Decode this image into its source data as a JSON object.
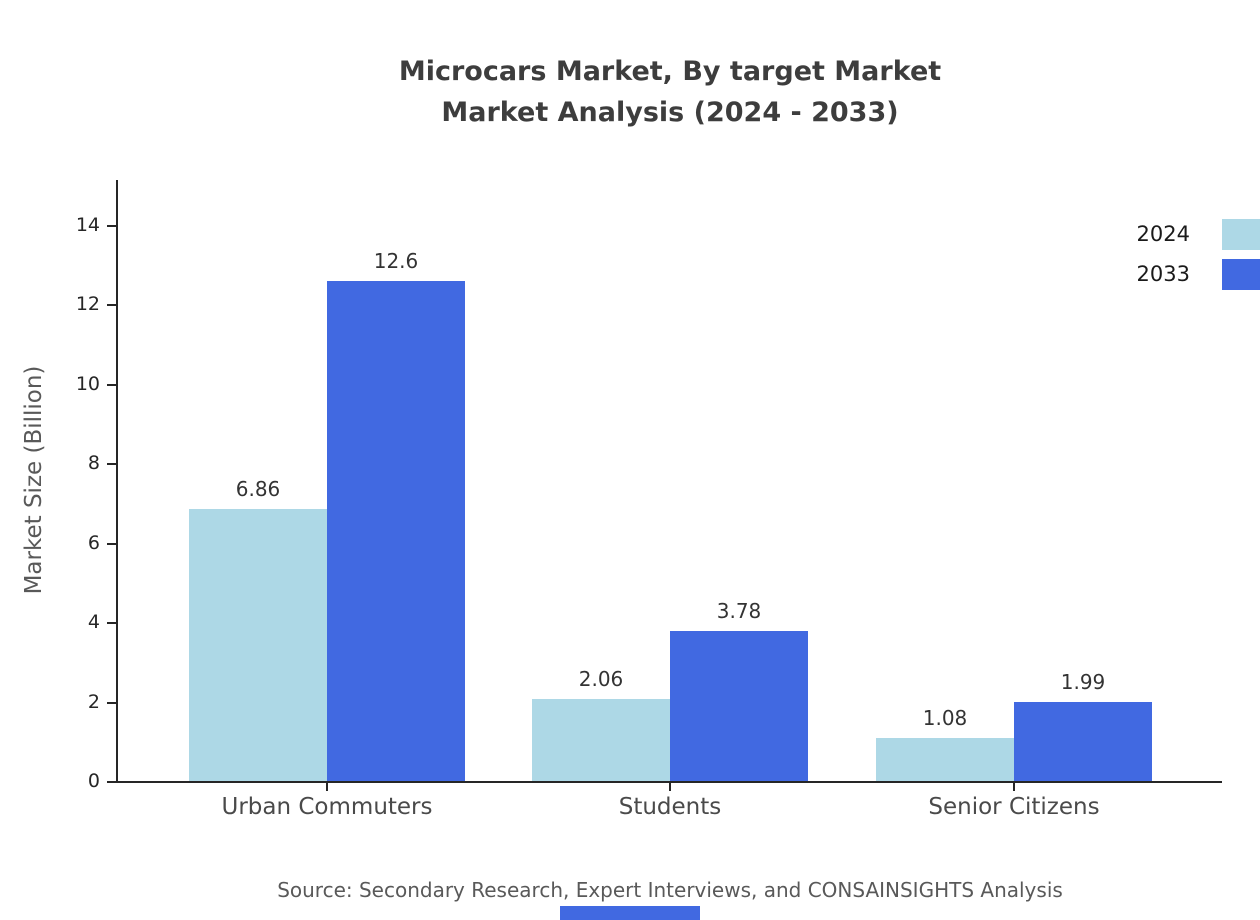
{
  "chart": {
    "title_line1": "Microcars Market, By target Market",
    "title_line2": "Market Analysis (2024 - 2033)",
    "ylabel": "Market Size (Billion)",
    "source": "Source: Secondary Research, Expert Interviews, and CONSAINSIGHTS Analysis"
  },
  "chart_data": {
    "type": "bar",
    "title": "Microcars Market, By target Market — Market Analysis (2024 - 2033)",
    "categories": [
      "Urban Commuters",
      "Students",
      "Senior Citizens"
    ],
    "series": [
      {
        "name": "2024",
        "color": "#ADD8E6",
        "values": [
          6.86,
          2.06,
          1.08
        ]
      },
      {
        "name": "2033",
        "color": "#4169E1",
        "values": [
          12.6,
          3.78,
          1.99
        ]
      }
    ],
    "xlabel": "",
    "ylabel": "Market Size (Billion)",
    "ylim": [
      0,
      15
    ],
    "yticks": [
      0,
      2,
      4,
      6,
      8,
      10,
      12,
      14
    ],
    "grid": false,
    "legend_position": "top-right",
    "value_labels_shown": true,
    "axis_color": "#262626",
    "text_color": "#333333"
  }
}
